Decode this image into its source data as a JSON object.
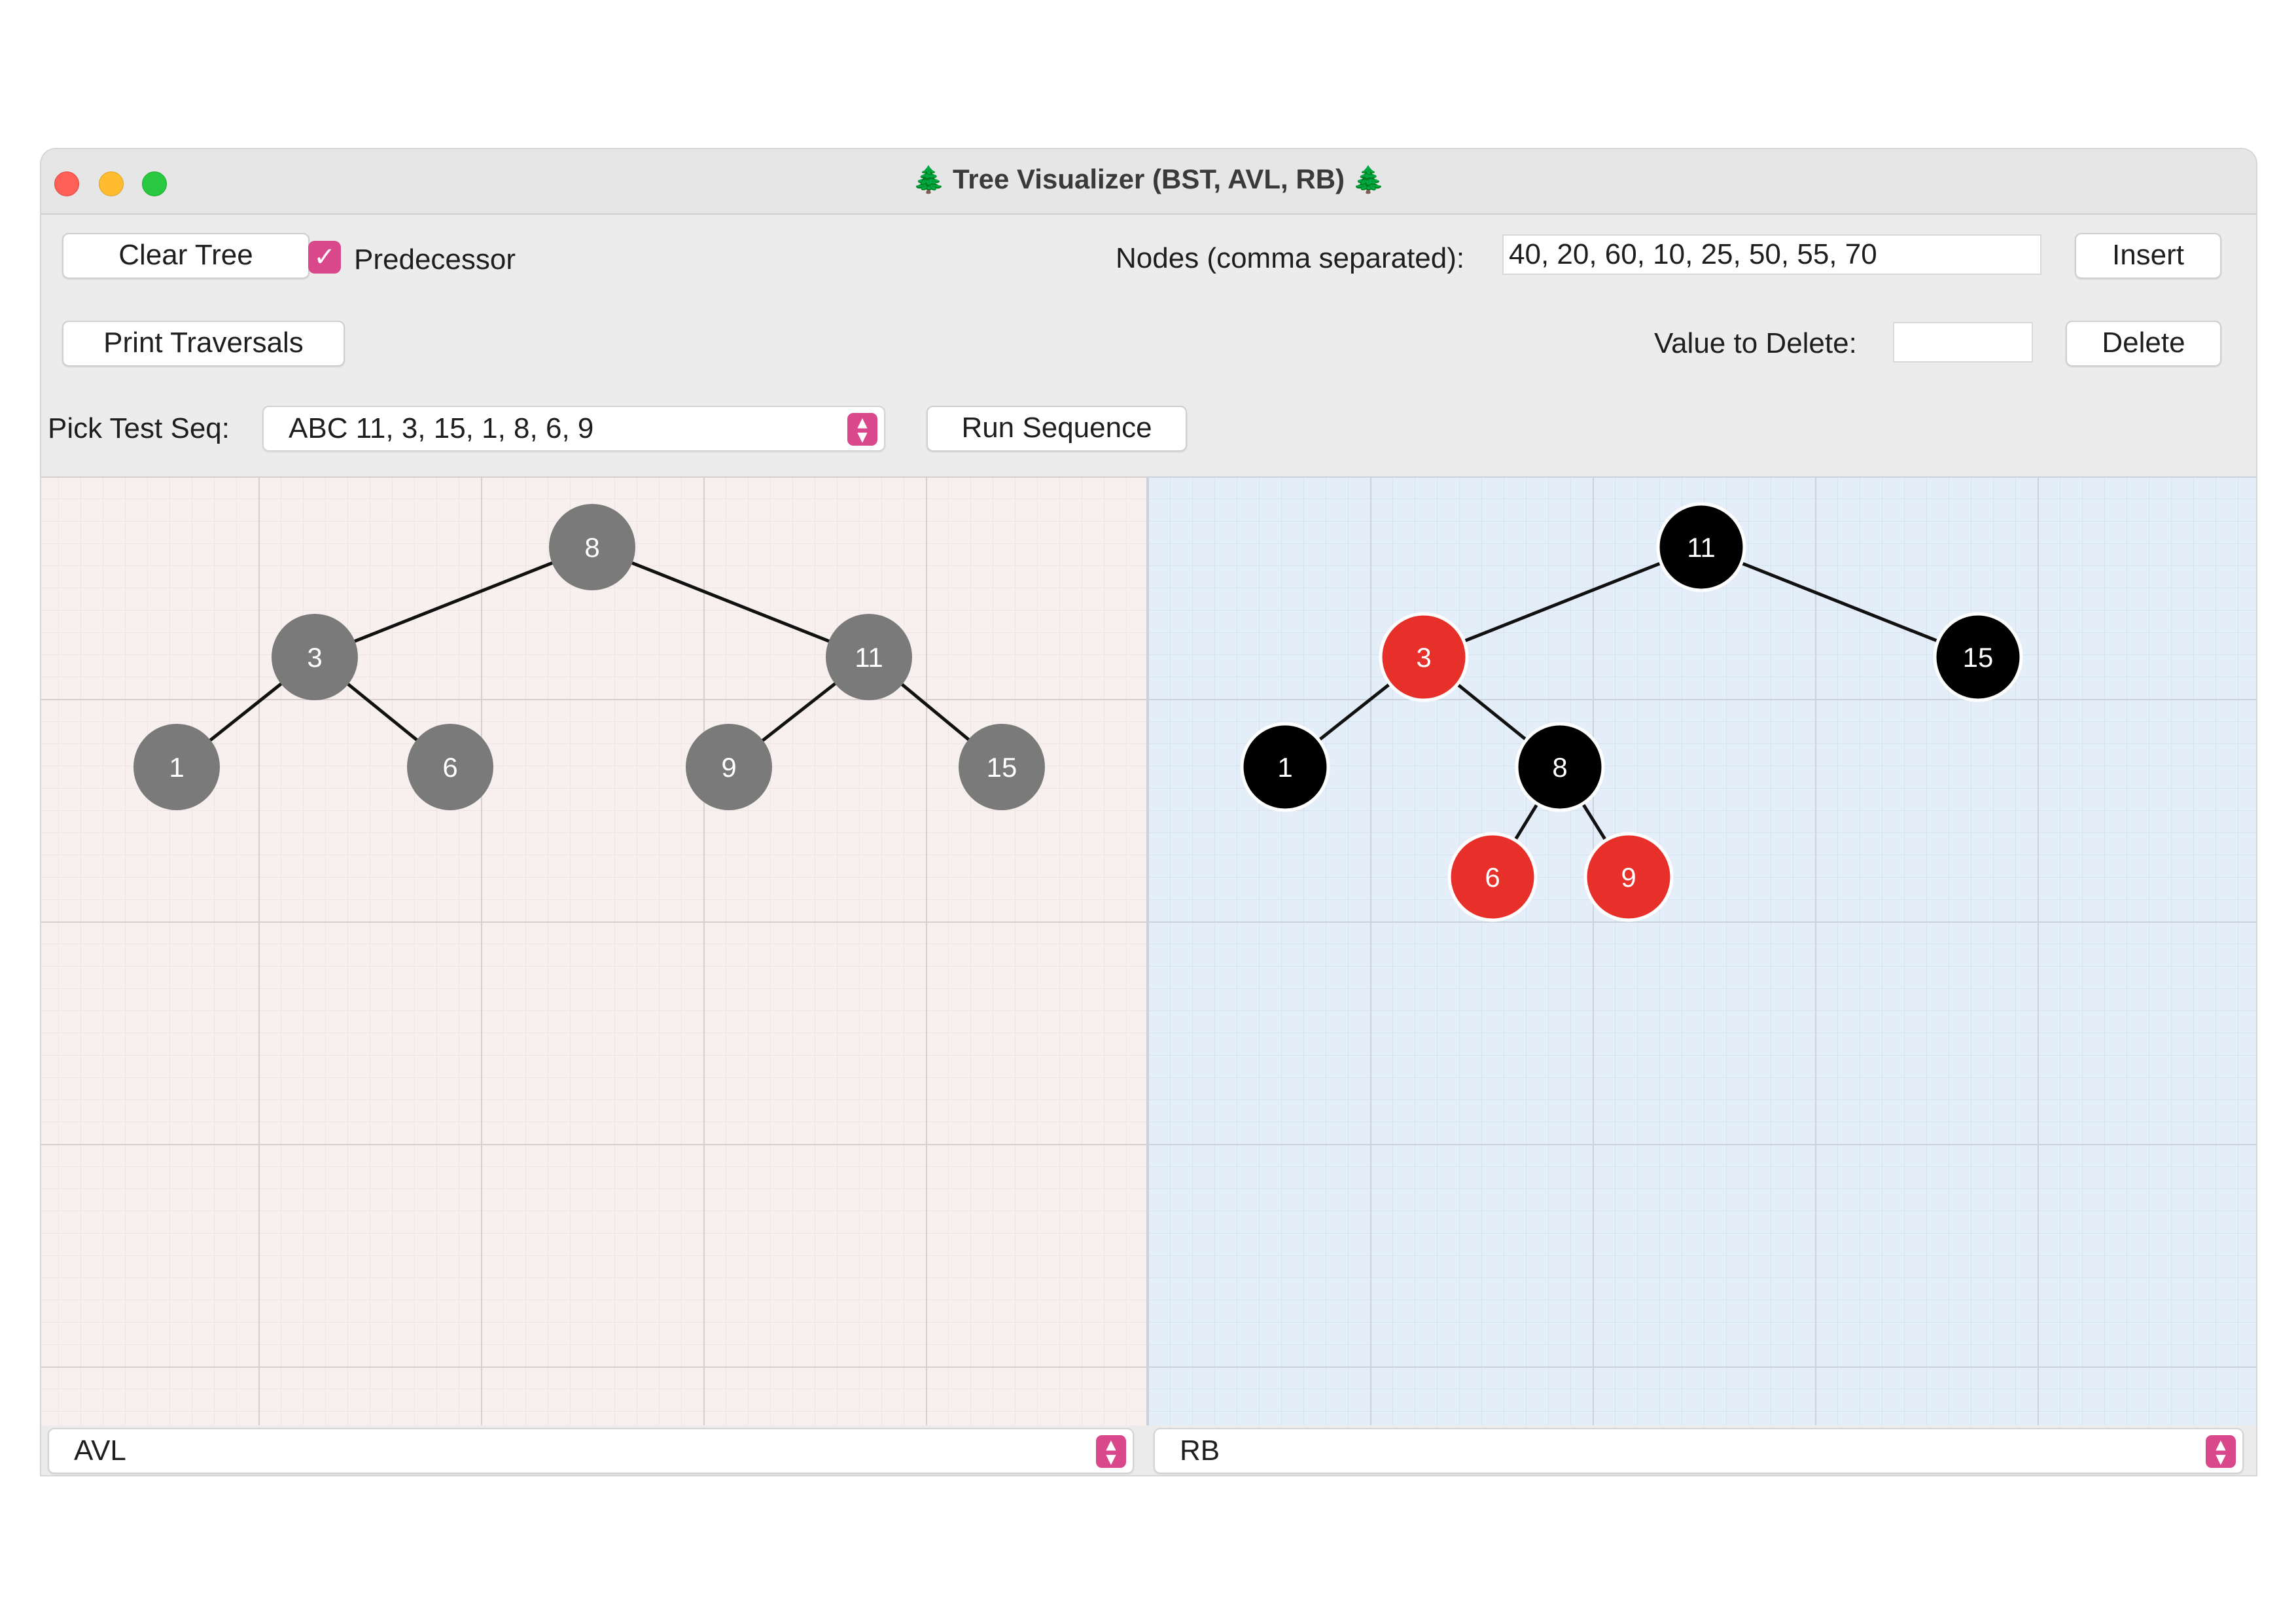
{
  "window": {
    "title": "Tree Visualizer (BST, AVL, RB)",
    "title_icon": "🌲"
  },
  "toolbar": {
    "clear_label": "Clear Tree",
    "predecessor_label": "Predecessor",
    "predecessor_checked": true,
    "nodes_label": "Nodes (comma separated):",
    "nodes_value": "40, 20, 60, 10, 25, 50, 55, 70",
    "insert_label": "Insert",
    "print_label": "Print Traversals",
    "delete_value_label": "Value to Delete:",
    "delete_value": "",
    "delete_label": "Delete",
    "pick_label": "Pick Test Seq:",
    "pick_value": "ABC 11, 3, 15, 1, 8, 6, 9",
    "run_label": "Run Sequence"
  },
  "colors": {
    "accent": "#d9488a",
    "gray_node": "#7a7a7a",
    "black_node": "#000000",
    "red_node": "#e8302a",
    "left_bg": "#f7f0ee",
    "right_bg": "#e4eef8"
  },
  "left_tree": {
    "type": "AVL",
    "nodes": [
      {
        "id": "n8",
        "value": "8",
        "color": "gray"
      },
      {
        "id": "n3",
        "value": "3",
        "color": "gray"
      },
      {
        "id": "n11",
        "value": "11",
        "color": "gray"
      },
      {
        "id": "n1",
        "value": "1",
        "color": "gray"
      },
      {
        "id": "n6",
        "value": "6",
        "color": "gray"
      },
      {
        "id": "n9",
        "value": "9",
        "color": "gray"
      },
      {
        "id": "n15",
        "value": "15",
        "color": "gray"
      }
    ],
    "edges": [
      [
        "n8",
        "n3"
      ],
      [
        "n8",
        "n11"
      ],
      [
        "n3",
        "n1"
      ],
      [
        "n3",
        "n6"
      ],
      [
        "n11",
        "n9"
      ],
      [
        "n11",
        "n15"
      ]
    ]
  },
  "right_tree": {
    "type": "RB",
    "nodes": [
      {
        "id": "r11",
        "value": "11",
        "color": "black"
      },
      {
        "id": "r3",
        "value": "3",
        "color": "red"
      },
      {
        "id": "r15",
        "value": "15",
        "color": "black"
      },
      {
        "id": "r1",
        "value": "1",
        "color": "black"
      },
      {
        "id": "r8",
        "value": "8",
        "color": "black"
      },
      {
        "id": "r6",
        "value": "6",
        "color": "red"
      },
      {
        "id": "r9",
        "value": "9",
        "color": "red"
      }
    ],
    "edges": [
      [
        "r11",
        "r3"
      ],
      [
        "r11",
        "r15"
      ],
      [
        "r3",
        "r1"
      ],
      [
        "r3",
        "r8"
      ],
      [
        "r8",
        "r6"
      ],
      [
        "r8",
        "r9"
      ]
    ]
  },
  "bottom": {
    "left_select": "AVL",
    "right_select": "RB"
  }
}
